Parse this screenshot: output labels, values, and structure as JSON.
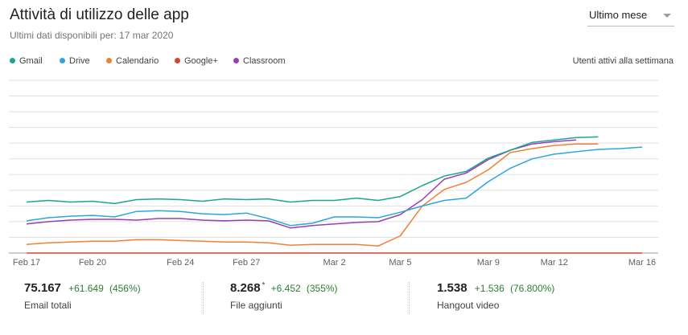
{
  "header": {
    "title": "Attività di utilizzo delle app",
    "subtitle": "Ultimi dati disponibili per: 17 mar 2020",
    "period_select": "Ultimo mese"
  },
  "legend": [
    {
      "name": "Gmail",
      "color": "#1aa596"
    },
    {
      "name": "Drive",
      "color": "#2ba6de"
    },
    {
      "name": "Calendario",
      "color": "#ee8136"
    },
    {
      "name": "Google+",
      "color": "#d5452d"
    },
    {
      "name": "Classroom",
      "color": "#9b3eb4"
    }
  ],
  "y_axis_label": "Utenti attivi alla settimana",
  "chart_data": {
    "type": "line",
    "x_tick_labels": [
      "Feb 17",
      "Feb 20",
      "Feb 24",
      "Feb 27",
      "Mar 2",
      "Mar 5",
      "Mar 9",
      "Mar 12",
      "Mar 16"
    ],
    "x_tick_days": [
      0,
      3,
      7,
      10,
      14,
      17,
      21,
      24,
      28
    ],
    "y_gridlines": 11,
    "y_ticks_visible": false,
    "y_range_relative": [
      0,
      11
    ],
    "series": [
      {
        "name": "Gmail",
        "color": "#1aa596",
        "x": [
          0,
          1,
          2,
          3,
          4,
          5,
          6,
          7,
          8,
          9,
          10,
          11,
          12,
          13,
          14,
          15,
          16,
          17,
          18,
          19,
          20,
          21,
          22,
          23,
          24,
          25,
          26
        ],
        "y": [
          3.25,
          3.35,
          3.25,
          3.3,
          3.15,
          3.4,
          3.45,
          3.4,
          3.3,
          3.45,
          3.4,
          3.45,
          3.25,
          3.35,
          3.35,
          3.5,
          3.35,
          3.6,
          4.3,
          4.9,
          5.2,
          6.05,
          6.55,
          7.05,
          7.2,
          7.35,
          7.4
        ]
      },
      {
        "name": "Drive",
        "color": "#2ba6de",
        "x": [
          0,
          1,
          2,
          3,
          4,
          5,
          6,
          7,
          8,
          9,
          10,
          11,
          12,
          13,
          14,
          15,
          16,
          17,
          18,
          19,
          20,
          21,
          22,
          23,
          24,
          25,
          26,
          27,
          28
        ],
        "y": [
          2.05,
          2.25,
          2.35,
          2.4,
          2.3,
          2.65,
          2.7,
          2.65,
          2.5,
          2.45,
          2.55,
          2.2,
          1.75,
          1.9,
          2.3,
          2.3,
          2.25,
          2.6,
          3.0,
          3.35,
          3.5,
          4.55,
          5.4,
          6.0,
          6.3,
          6.45,
          6.6,
          6.65,
          6.75
        ]
      },
      {
        "name": "Calendario",
        "color": "#ee8136",
        "x": [
          0,
          1,
          2,
          3,
          4,
          5,
          6,
          7,
          8,
          9,
          10,
          11,
          12,
          13,
          14,
          15,
          16,
          17,
          18,
          19,
          20,
          21,
          22,
          23,
          24,
          25,
          26
        ],
        "y": [
          0.55,
          0.65,
          0.7,
          0.75,
          0.75,
          0.85,
          0.85,
          0.8,
          0.75,
          0.7,
          0.7,
          0.65,
          0.5,
          0.55,
          0.55,
          0.55,
          0.45,
          1.1,
          3.0,
          4.05,
          4.5,
          5.3,
          6.4,
          6.65,
          6.85,
          6.95,
          6.95
        ]
      },
      {
        "name": "Google+",
        "color": "#d5452d",
        "x": [
          0,
          28
        ],
        "y": [
          0,
          0
        ]
      },
      {
        "name": "Classroom",
        "color": "#9b3eb4",
        "x": [
          0,
          1,
          2,
          3,
          4,
          5,
          6,
          7,
          8,
          9,
          10,
          11,
          12,
          13,
          14,
          15,
          16,
          17,
          18,
          19,
          20,
          21,
          22,
          23,
          24,
          25
        ],
        "y": [
          1.85,
          2.0,
          2.1,
          2.15,
          2.15,
          2.1,
          2.2,
          2.2,
          2.1,
          2.05,
          2.1,
          2.05,
          1.6,
          1.75,
          1.85,
          1.95,
          2.0,
          2.45,
          3.4,
          4.7,
          5.1,
          5.95,
          6.55,
          6.95,
          7.1,
          7.2
        ]
      }
    ]
  },
  "stats": [
    {
      "value": "75.167",
      "star": "",
      "delta": "+61.649",
      "percent": "(456%)",
      "label": "Email totali"
    },
    {
      "value": "8.268",
      "star": "*",
      "delta": "+6.452",
      "percent": "(355%)",
      "label": "File aggiunti"
    },
    {
      "value": "1.538",
      "star": "",
      "delta": "+1.536",
      "percent": "(76.800%)",
      "label": "Hangout video"
    }
  ]
}
